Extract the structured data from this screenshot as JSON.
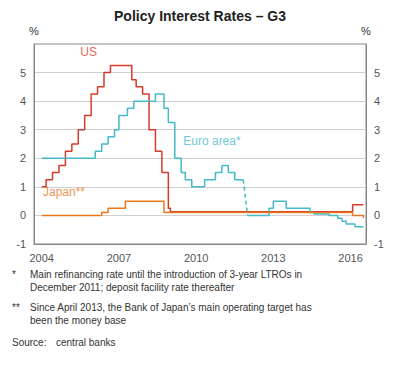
{
  "chart_data": {
    "type": "step",
    "title": "Policy Interest Rates – G3",
    "ylabel": "%",
    "y2label": "%",
    "xlim": [
      2003.7,
      2016.6
    ],
    "xticks": [
      2004,
      2007,
      2010,
      2013,
      2016
    ],
    "ylim": [
      -1,
      6
    ],
    "yticks": [
      -1,
      0,
      1,
      2,
      3,
      4,
      5
    ],
    "y2lim": [
      -1,
      6
    ],
    "y2ticks": [
      -1,
      0,
      1,
      2,
      3,
      4,
      5
    ],
    "grid": true,
    "series": [
      {
        "color": "#d63a2a",
        "x": [
          2004.0,
          2004.17,
          2004.42,
          2004.67,
          2004.92,
          2005.17,
          2005.42,
          2005.67,
          2005.92,
          2006.17,
          2006.42,
          2006.67,
          2006.75,
          2007.0,
          2007.5,
          2007.67,
          2007.92,
          2008.17,
          2008.42,
          2008.67,
          2008.92,
          2009.0,
          2015.92,
          2016.08,
          2016.5
        ],
        "values": [
          1.0,
          1.25,
          1.5,
          1.75,
          2.25,
          2.5,
          3.0,
          3.5,
          4.25,
          4.5,
          5.0,
          5.25,
          5.25,
          5.25,
          4.75,
          4.5,
          4.25,
          3.0,
          2.25,
          1.5,
          0.25,
          0.125,
          0.125,
          0.375,
          0.375
        ]
      },
      {
        "color": "#44bbc8",
        "x": [
          2004.0,
          2005.75,
          2006.08,
          2006.33,
          2006.58,
          2006.83,
          2007.0,
          2007.33,
          2007.58,
          2008.0,
          2008.42,
          2008.75,
          2008.92,
          2009.17,
          2009.42,
          2009.58,
          2009.83,
          2010.0,
          2010.33,
          2010.75,
          2011.0,
          2011.25,
          2011.5,
          2011.83
        ],
        "values": [
          2.0,
          2.0,
          2.25,
          2.5,
          2.75,
          3.0,
          3.5,
          3.75,
          4.0,
          4.0,
          4.25,
          3.75,
          3.25,
          2.0,
          1.5,
          1.25,
          1.0,
          1.0,
          1.25,
          1.5,
          1.75,
          1.5,
          1.25,
          1.25
        ]
      },
      {
        "color": "#44bbc8",
        "type": "line",
        "line_style": "dashed",
        "x": [
          2011.83,
          2012.0
        ],
        "values": [
          1.25,
          0.0
        ]
      },
      {
        "color": "#44bbc8",
        "x": [
          2012.0,
          2012.08,
          2012.5,
          2012.83,
          2013.0,
          2013.5,
          2013.75,
          2014.0,
          2014.42,
          2014.58,
          2014.75,
          2015.0,
          2015.17,
          2015.5,
          2015.67,
          2015.83,
          2016.0,
          2016.17,
          2016.5
        ],
        "values": [
          0.0,
          0.0,
          0.0,
          0.25,
          0.5,
          0.25,
          0.25,
          0.25,
          0.1,
          0.05,
          0.05,
          0.05,
          0.0,
          -0.1,
          -0.2,
          -0.3,
          -0.3,
          -0.4,
          -0.4
        ]
      },
      {
        "color": "#e8781e",
        "x": [
          2004.0,
          2006.33,
          2006.58,
          2007.25,
          2008.42,
          2008.75,
          2016.08,
          2016.5
        ],
        "values": [
          0.0,
          0.1,
          0.25,
          0.5,
          0.5,
          0.1,
          0.0,
          -0.1
        ]
      }
    ],
    "annotations": [
      {
        "text": "US",
        "x": 2005.5,
        "y": 5.5,
        "color": "#d63a2a"
      },
      {
        "text": "Euro area*",
        "x": 2009.5,
        "y": 2.4,
        "color": "#44bbc8"
      },
      {
        "text": "Japan**",
        "x": 2004.05,
        "y": 0.6,
        "color": "#e8781e"
      }
    ],
    "footnotes": [
      {
        "bullet": "*",
        "text": "Main refinancing rate until the introduction of 3-year LTROs in\nDecember 2011; deposit facility rate thereafter"
      },
      {
        "bullet": "**",
        "text": "Since April 2013, the Bank of Japan’s main operating target has\nbeen the money base"
      }
    ],
    "source": {
      "label": "Source:",
      "text": "central banks"
    }
  }
}
